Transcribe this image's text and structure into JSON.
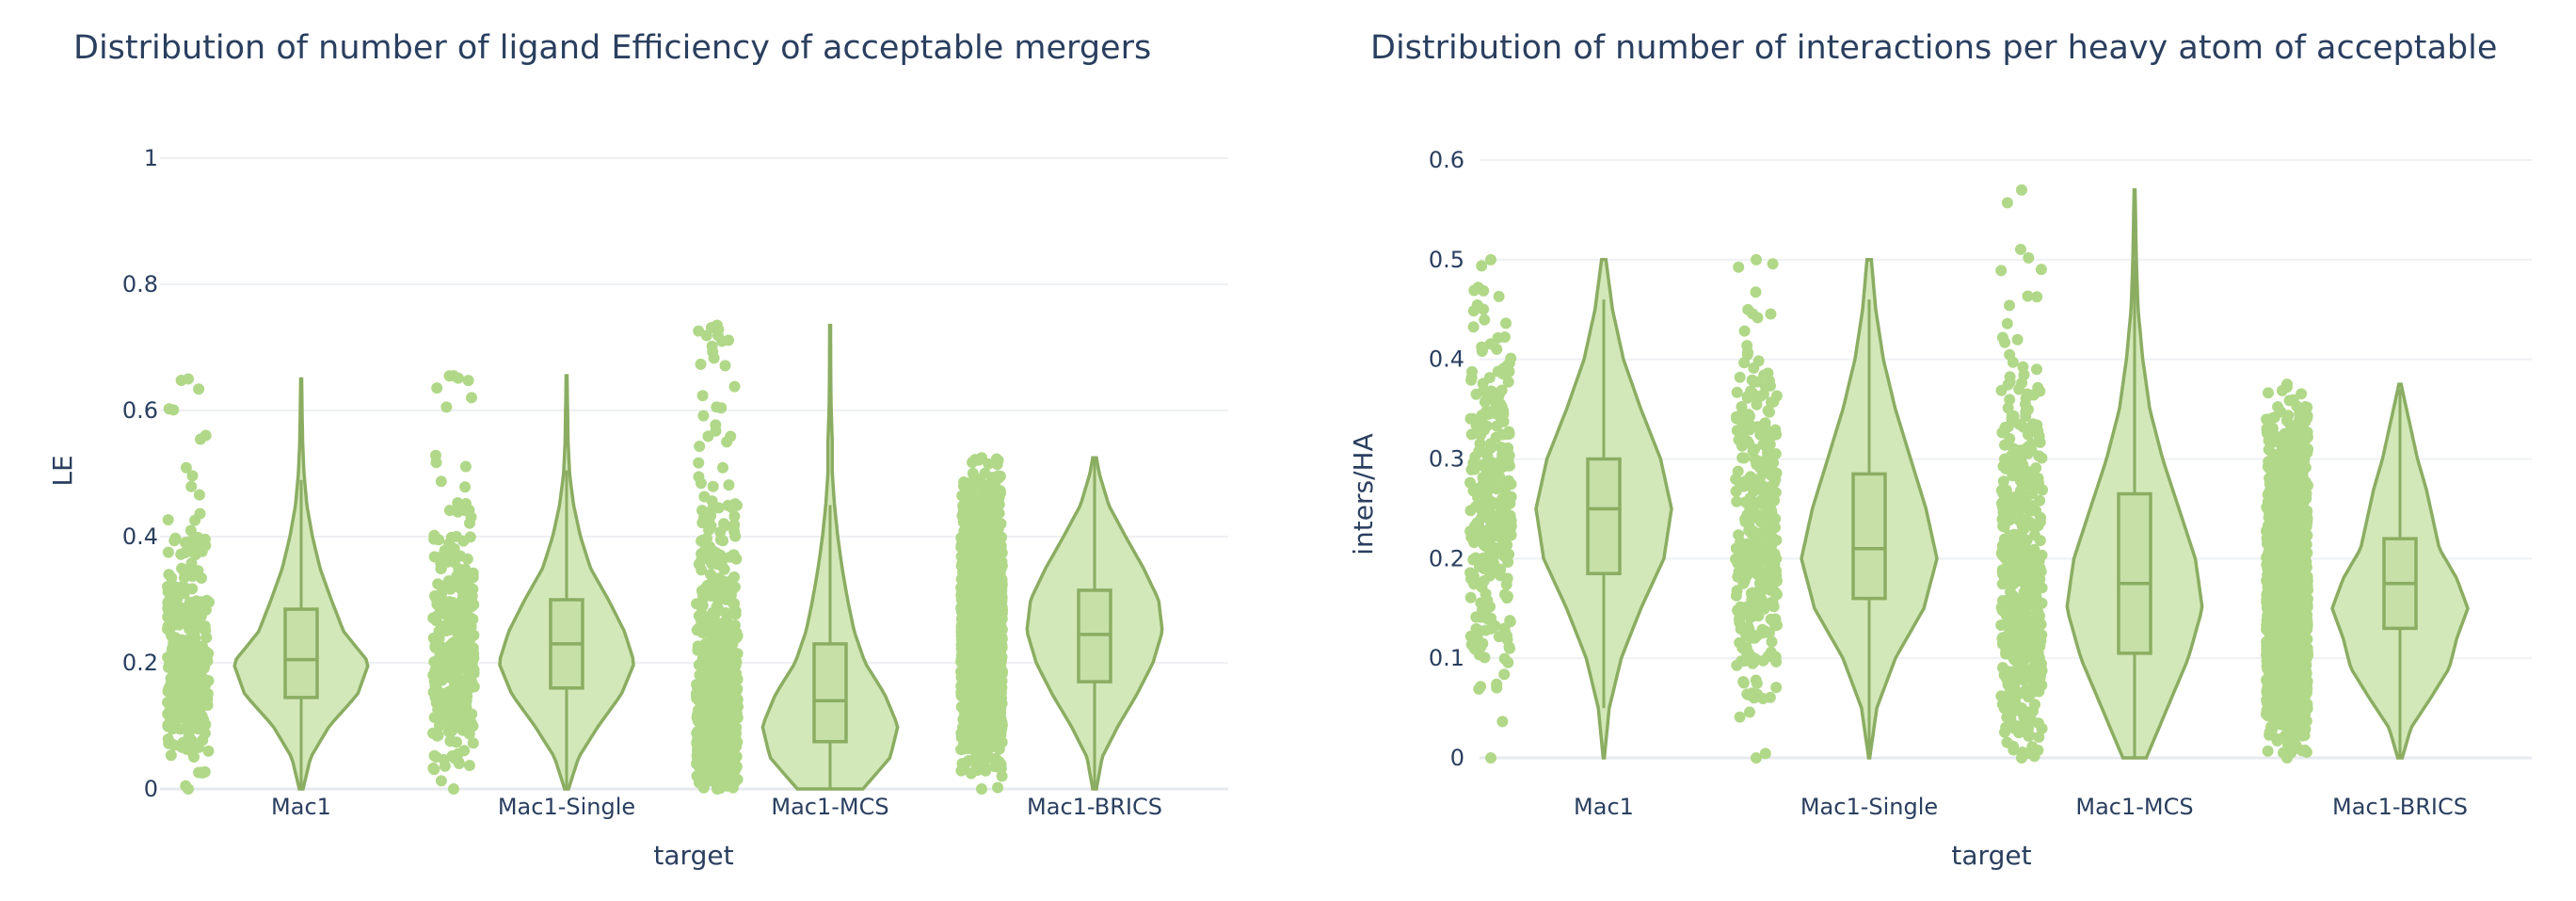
{
  "style": {
    "violin_fill": "#d2e8b8",
    "violin_line": "#8bad62",
    "point_color": "#b0d888",
    "grid_color": "#eef0f3",
    "text_color": "#2a3f5f"
  },
  "chart_data": [
    {
      "type": "violin",
      "title": "Distribution of number of ligand Efficiency of acceptable mergers",
      "xlabel": "target",
      "ylabel": "LE",
      "ylim": [
        0,
        1
      ],
      "yticks": [
        0,
        0.2,
        0.4,
        0.6,
        0.8,
        1
      ],
      "ytick_labels": [
        "0",
        "0.2",
        "0.4",
        "0.6",
        "0.8",
        "1"
      ],
      "grid": true,
      "show_points": "all",
      "show_box": true,
      "categories": [
        "Mac1",
        "Mac1-Single",
        "Mac1-MCS",
        "Mac1-BRICS"
      ],
      "series": [
        {
          "category": "Mac1",
          "min": 0.0,
          "max": 0.65,
          "q1": 0.145,
          "median": 0.205,
          "q3": 0.285,
          "lower_fence": 0.0,
          "upper_fence": 0.49,
          "n_points": 320,
          "density": [
            [
              0.0,
              0.02
            ],
            [
              0.05,
              0.1
            ],
            [
              0.1,
              0.3
            ],
            [
              0.15,
              0.6
            ],
            [
              0.2,
              0.72
            ],
            [
              0.25,
              0.45
            ],
            [
              0.3,
              0.32
            ],
            [
              0.35,
              0.2
            ],
            [
              0.4,
              0.12
            ],
            [
              0.45,
              0.06
            ],
            [
              0.5,
              0.03
            ],
            [
              0.55,
              0.015
            ],
            [
              0.6,
              0.01
            ],
            [
              0.65,
              0.005
            ]
          ]
        },
        {
          "category": "Mac1-Single",
          "min": 0.0,
          "max": 0.655,
          "q1": 0.16,
          "median": 0.23,
          "q3": 0.3,
          "lower_fence": 0.0,
          "upper_fence": 0.505,
          "n_points": 340,
          "density": [
            [
              0.0,
              0.02
            ],
            [
              0.05,
              0.12
            ],
            [
              0.1,
              0.32
            ],
            [
              0.15,
              0.55
            ],
            [
              0.2,
              0.68
            ],
            [
              0.25,
              0.58
            ],
            [
              0.3,
              0.42
            ],
            [
              0.35,
              0.24
            ],
            [
              0.4,
              0.14
            ],
            [
              0.45,
              0.07
            ],
            [
              0.5,
              0.03
            ],
            [
              0.55,
              0.015
            ],
            [
              0.6,
              0.01
            ],
            [
              0.655,
              0.005
            ]
          ]
        },
        {
          "category": "Mac1-MCS",
          "min": 0.0,
          "max": 0.735,
          "q1": 0.075,
          "median": 0.14,
          "q3": 0.23,
          "lower_fence": 0.0,
          "upper_fence": 0.45,
          "n_points": 700,
          "density": [
            [
              0.0,
              0.3
            ],
            [
              0.05,
              0.55
            ],
            [
              0.1,
              0.62
            ],
            [
              0.15,
              0.5
            ],
            [
              0.2,
              0.32
            ],
            [
              0.25,
              0.22
            ],
            [
              0.3,
              0.16
            ],
            [
              0.35,
              0.11
            ],
            [
              0.4,
              0.07
            ],
            [
              0.45,
              0.04
            ],
            [
              0.5,
              0.02
            ],
            [
              0.55,
              0.02
            ],
            [
              0.6,
              0.01
            ],
            [
              0.65,
              0.006
            ],
            [
              0.735,
              0.004
            ]
          ]
        },
        {
          "category": "Mac1-BRICS",
          "min": 0.0,
          "max": 0.525,
          "q1": 0.17,
          "median": 0.245,
          "q3": 0.315,
          "lower_fence": 0.0,
          "upper_fence": 0.525,
          "n_points": 1800,
          "density": [
            [
              0.0,
              0.02
            ],
            [
              0.05,
              0.08
            ],
            [
              0.1,
              0.25
            ],
            [
              0.15,
              0.45
            ],
            [
              0.2,
              0.62
            ],
            [
              0.25,
              0.72
            ],
            [
              0.3,
              0.68
            ],
            [
              0.35,
              0.52
            ],
            [
              0.4,
              0.33
            ],
            [
              0.45,
              0.15
            ],
            [
              0.5,
              0.05
            ],
            [
              0.525,
              0.02
            ]
          ]
        }
      ]
    },
    {
      "type": "violin",
      "title": "Distribution of number of interactions per heavy atom of acceptable",
      "xlabel": "target",
      "ylabel": "inters/HA",
      "ylim": [
        0,
        0.6
      ],
      "yticks": [
        0,
        0.1,
        0.2,
        0.3,
        0.4,
        0.5,
        0.6
      ],
      "ytick_labels": [
        "0",
        "0.1",
        "0.2",
        "0.3",
        "0.4",
        "0.5",
        "0.6"
      ],
      "grid": true,
      "show_points": "all",
      "show_box": true,
      "categories": [
        "Mac1",
        "Mac1-Single",
        "Mac1-MCS",
        "Mac1-BRICS"
      ],
      "series": [
        {
          "category": "Mac1",
          "min": 0.0,
          "max": 0.5,
          "q1": 0.185,
          "median": 0.25,
          "q3": 0.3,
          "lower_fence": 0.05,
          "upper_fence": 0.46,
          "n_points": 300,
          "density": [
            [
              0.0,
              0.005
            ],
            [
              0.05,
              0.05
            ],
            [
              0.1,
              0.16
            ],
            [
              0.15,
              0.34
            ],
            [
              0.2,
              0.55
            ],
            [
              0.25,
              0.62
            ],
            [
              0.3,
              0.52
            ],
            [
              0.35,
              0.34
            ],
            [
              0.4,
              0.18
            ],
            [
              0.45,
              0.08
            ],
            [
              0.5,
              0.02
            ]
          ]
        },
        {
          "category": "Mac1-Single",
          "min": 0.0,
          "max": 0.5,
          "q1": 0.16,
          "median": 0.21,
          "q3": 0.285,
          "lower_fence": 0.0,
          "upper_fence": 0.46,
          "n_points": 320,
          "density": [
            [
              0.0,
              0.005
            ],
            [
              0.05,
              0.07
            ],
            [
              0.1,
              0.24
            ],
            [
              0.15,
              0.5
            ],
            [
              0.2,
              0.62
            ],
            [
              0.25,
              0.52
            ],
            [
              0.3,
              0.38
            ],
            [
              0.35,
              0.24
            ],
            [
              0.4,
              0.13
            ],
            [
              0.45,
              0.06
            ],
            [
              0.5,
              0.02
            ]
          ]
        },
        {
          "category": "Mac1-MCS",
          "min": 0.0,
          "max": 0.57,
          "q1": 0.105,
          "median": 0.175,
          "q3": 0.265,
          "lower_fence": 0.0,
          "upper_fence": 0.5,
          "n_points": 500,
          "density": [
            [
              0.0,
              0.1
            ],
            [
              0.05,
              0.28
            ],
            [
              0.1,
              0.46
            ],
            [
              0.15,
              0.58
            ],
            [
              0.2,
              0.52
            ],
            [
              0.25,
              0.38
            ],
            [
              0.3,
              0.24
            ],
            [
              0.35,
              0.13
            ],
            [
              0.4,
              0.07
            ],
            [
              0.45,
              0.03
            ],
            [
              0.5,
              0.015
            ],
            [
              0.57,
              0.004
            ]
          ]
        },
        {
          "category": "Mac1-BRICS",
          "min": 0.0,
          "max": 0.375,
          "q1": 0.13,
          "median": 0.175,
          "q3": 0.22,
          "lower_fence": 0.0,
          "upper_fence": 0.37,
          "n_points": 1600,
          "density": [
            [
              0.0,
              0.02
            ],
            [
              0.03,
              0.1
            ],
            [
              0.06,
              0.28
            ],
            [
              0.09,
              0.45
            ],
            [
              0.12,
              0.52
            ],
            [
              0.15,
              0.62
            ],
            [
              0.18,
              0.52
            ],
            [
              0.21,
              0.36
            ],
            [
              0.24,
              0.3
            ],
            [
              0.27,
              0.24
            ],
            [
              0.3,
              0.16
            ],
            [
              0.33,
              0.1
            ],
            [
              0.36,
              0.04
            ],
            [
              0.375,
              0.01
            ]
          ]
        }
      ]
    }
  ]
}
